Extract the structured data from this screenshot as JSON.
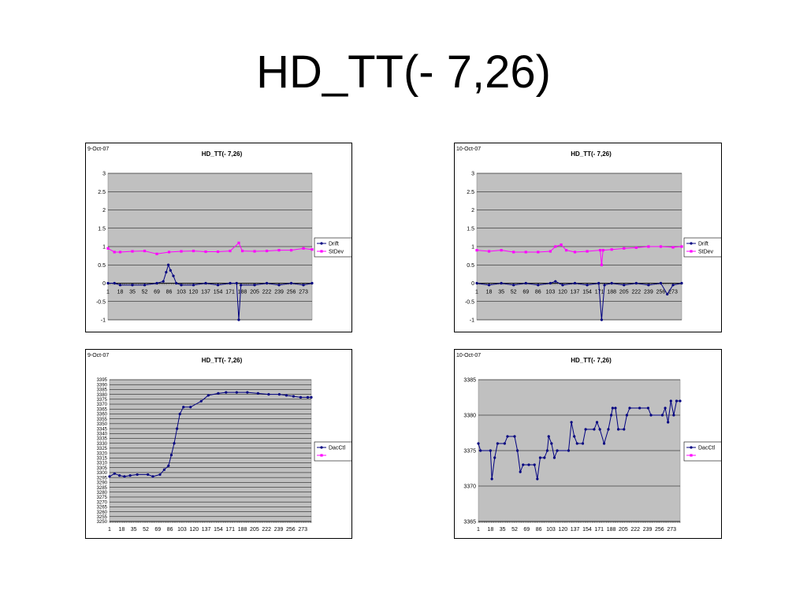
{
  "slide": {
    "title": "HD_TT(- 7,26)"
  },
  "colors": {
    "plot_bg": "#c0c0c0",
    "drift": "#000080",
    "stdev": "#ff00ff",
    "grid": "#000000"
  },
  "chart_data": [
    {
      "type": "line",
      "date": "9-Oct-07",
      "title": "HD_TT(- 7,26)",
      "ylim": [
        -1,
        3
      ],
      "yticks": [
        "-1",
        "-0.5",
        "0",
        "0.5",
        "1",
        "1.5",
        "2",
        "2.5",
        "3"
      ],
      "xticks": [
        "1",
        "18",
        "35",
        "52",
        "69",
        "86",
        "103",
        "120",
        "137",
        "154",
        "171",
        "188",
        "205",
        "222",
        "239",
        "256",
        "273"
      ],
      "series": [
        {
          "name": "Drift",
          "points": [
            [
              1,
              0
            ],
            [
              10,
              0
            ],
            [
              18,
              -0.05
            ],
            [
              35,
              -0.05
            ],
            [
              52,
              -0.05
            ],
            [
              69,
              0
            ],
            [
              78,
              0.05
            ],
            [
              82,
              0.3
            ],
            [
              85,
              0.5
            ],
            [
              88,
              0.35
            ],
            [
              92,
              0.2
            ],
            [
              96,
              0
            ],
            [
              103,
              -0.05
            ],
            [
              120,
              -0.05
            ],
            [
              137,
              0
            ],
            [
              154,
              -0.05
            ],
            [
              171,
              0
            ],
            [
              180,
              0
            ],
            [
              183,
              -1
            ],
            [
              186,
              -0.05
            ],
            [
              205,
              -0.05
            ],
            [
              222,
              0
            ],
            [
              239,
              -0.05
            ],
            [
              256,
              0
            ],
            [
              273,
              -0.05
            ],
            [
              285,
              0
            ]
          ]
        },
        {
          "name": "StDev",
          "points": [
            [
              1,
              0.95
            ],
            [
              10,
              0.85
            ],
            [
              18,
              0.85
            ],
            [
              35,
              0.87
            ],
            [
              52,
              0.88
            ],
            [
              69,
              0.8
            ],
            [
              86,
              0.85
            ],
            [
              103,
              0.87
            ],
            [
              120,
              0.88
            ],
            [
              137,
              0.86
            ],
            [
              154,
              0.86
            ],
            [
              171,
              0.88
            ],
            [
              183,
              1.1
            ],
            [
              188,
              0.88
            ],
            [
              205,
              0.87
            ],
            [
              222,
              0.88
            ],
            [
              239,
              0.9
            ],
            [
              256,
              0.9
            ],
            [
              273,
              0.95
            ],
            [
              285,
              0.92
            ]
          ]
        }
      ]
    },
    {
      "type": "line",
      "date": "10-Oct-07",
      "title": "HD_TT(- 7,26)",
      "ylim": [
        -1,
        3
      ],
      "yticks": [
        "-1",
        "-0.5",
        "0",
        "0.5",
        "1",
        "1.5",
        "2",
        "2.5",
        "3"
      ],
      "xticks": [
        "1",
        "18",
        "35",
        "52",
        "69",
        "86",
        "103",
        "120",
        "137",
        "154",
        "171",
        "188",
        "205",
        "222",
        "239",
        "256",
        "273"
      ],
      "series": [
        {
          "name": "Drift",
          "points": [
            [
              1,
              0
            ],
            [
              18,
              -0.05
            ],
            [
              35,
              0
            ],
            [
              52,
              -0.05
            ],
            [
              69,
              0
            ],
            [
              86,
              -0.05
            ],
            [
              103,
              0
            ],
            [
              110,
              0.05
            ],
            [
              120,
              -0.05
            ],
            [
              137,
              0
            ],
            [
              154,
              -0.05
            ],
            [
              170,
              0
            ],
            [
              174,
              -1
            ],
            [
              178,
              -0.05
            ],
            [
              188,
              0
            ],
            [
              205,
              -0.05
            ],
            [
              222,
              0
            ],
            [
              239,
              -0.05
            ],
            [
              256,
              0
            ],
            [
              265,
              -0.3
            ],
            [
              273,
              -0.05
            ],
            [
              285,
              0
            ]
          ]
        },
        {
          "name": "StDev",
          "points": [
            [
              1,
              0.9
            ],
            [
              18,
              0.87
            ],
            [
              35,
              0.9
            ],
            [
              52,
              0.85
            ],
            [
              69,
              0.85
            ],
            [
              86,
              0.85
            ],
            [
              103,
              0.87
            ],
            [
              110,
              1.0
            ],
            [
              118,
              1.05
            ],
            [
              125,
              0.9
            ],
            [
              137,
              0.85
            ],
            [
              154,
              0.87
            ],
            [
              172,
              0.9
            ],
            [
              174,
              0.5
            ],
            [
              176,
              0.9
            ],
            [
              188,
              0.92
            ],
            [
              205,
              0.95
            ],
            [
              222,
              0.97
            ],
            [
              239,
              1.0
            ],
            [
              256,
              1.0
            ],
            [
              273,
              0.98
            ],
            [
              285,
              1.0
            ]
          ]
        }
      ]
    },
    {
      "type": "line",
      "date": "9-Oct-07",
      "title": "HD_TT(- 7,26)",
      "ylim": [
        3250,
        3395
      ],
      "yticks": [
        "3250",
        "3255",
        "3260",
        "3265",
        "3270",
        "3275",
        "3280",
        "3285",
        "3290",
        "3295",
        "3300",
        "3305",
        "3310",
        "3315",
        "3320",
        "3325",
        "3330",
        "3335",
        "3340",
        "3345",
        "3350",
        "3355",
        "3360",
        "3365",
        "3370",
        "3375",
        "3380",
        "3385",
        "3390",
        "3395"
      ],
      "xticks": [
        "1",
        "18",
        "35",
        "52",
        "69",
        "86",
        "103",
        "120",
        "137",
        "154",
        "171",
        "188",
        "205",
        "222",
        "239",
        "256",
        "273"
      ],
      "series": [
        {
          "name": "DacCtl",
          "points": [
            [
              1,
              3296
            ],
            [
              8,
              3299
            ],
            [
              15,
              3297
            ],
            [
              22,
              3296
            ],
            [
              30,
              3297
            ],
            [
              40,
              3298
            ],
            [
              55,
              3298
            ],
            [
              62,
              3296
            ],
            [
              72,
              3298
            ],
            [
              78,
              3303
            ],
            [
              84,
              3307
            ],
            [
              88,
              3318
            ],
            [
              92,
              3330
            ],
            [
              96,
              3345
            ],
            [
              100,
              3360
            ],
            [
              105,
              3367
            ],
            [
              115,
              3367
            ],
            [
              130,
              3373
            ],
            [
              140,
              3379
            ],
            [
              154,
              3381
            ],
            [
              165,
              3382
            ],
            [
              180,
              3382
            ],
            [
              195,
              3382
            ],
            [
              210,
              3381
            ],
            [
              225,
              3380
            ],
            [
              240,
              3380
            ],
            [
              250,
              3379
            ],
            [
              260,
              3378
            ],
            [
              270,
              3377
            ],
            [
              280,
              3377
            ],
            [
              285,
              3377
            ]
          ]
        },
        {
          "name": "",
          "points": []
        }
      ]
    },
    {
      "type": "line",
      "date": "10-Oct-07",
      "title": "HD_TT(- 7,26)",
      "ylim": [
        3365,
        3385
      ],
      "yticks": [
        "3365",
        "3370",
        "3375",
        "3380",
        "3385"
      ],
      "xticks": [
        "1",
        "18",
        "35",
        "52",
        "69",
        "86",
        "103",
        "120",
        "137",
        "154",
        "171",
        "188",
        "205",
        "222",
        "239",
        "256",
        "273"
      ],
      "series": [
        {
          "name": "DacCtl",
          "points": [
            [
              1,
              3376
            ],
            [
              4,
              3375
            ],
            [
              18,
              3375
            ],
            [
              20,
              3371
            ],
            [
              24,
              3374
            ],
            [
              28,
              3376
            ],
            [
              38,
              3376
            ],
            [
              42,
              3377
            ],
            [
              52,
              3377
            ],
            [
              56,
              3375
            ],
            [
              60,
              3372
            ],
            [
              64,
              3373
            ],
            [
              72,
              3373
            ],
            [
              80,
              3373
            ],
            [
              84,
              3371
            ],
            [
              88,
              3374
            ],
            [
              94,
              3374
            ],
            [
              98,
              3375
            ],
            [
              100,
              3377
            ],
            [
              104,
              3376
            ],
            [
              108,
              3374
            ],
            [
              112,
              3375
            ],
            [
              128,
              3375
            ],
            [
              132,
              3379
            ],
            [
              136,
              3377
            ],
            [
              140,
              3376
            ],
            [
              148,
              3376
            ],
            [
              152,
              3378
            ],
            [
              164,
              3378
            ],
            [
              168,
              3379
            ],
            [
              172,
              3378
            ],
            [
              178,
              3376
            ],
            [
              184,
              3378
            ],
            [
              188,
              3380
            ],
            [
              190,
              3381
            ],
            [
              194,
              3381
            ],
            [
              198,
              3378
            ],
            [
              206,
              3378
            ],
            [
              210,
              3380
            ],
            [
              214,
              3381
            ],
            [
              228,
              3381
            ],
            [
              240,
              3381
            ],
            [
              244,
              3380
            ],
            [
              260,
              3380
            ],
            [
              264,
              3381
            ],
            [
              268,
              3379
            ],
            [
              272,
              3382
            ],
            [
              276,
              3380
            ],
            [
              280,
              3382
            ],
            [
              285,
              3382
            ]
          ]
        },
        {
          "name": "",
          "points": []
        }
      ]
    }
  ]
}
